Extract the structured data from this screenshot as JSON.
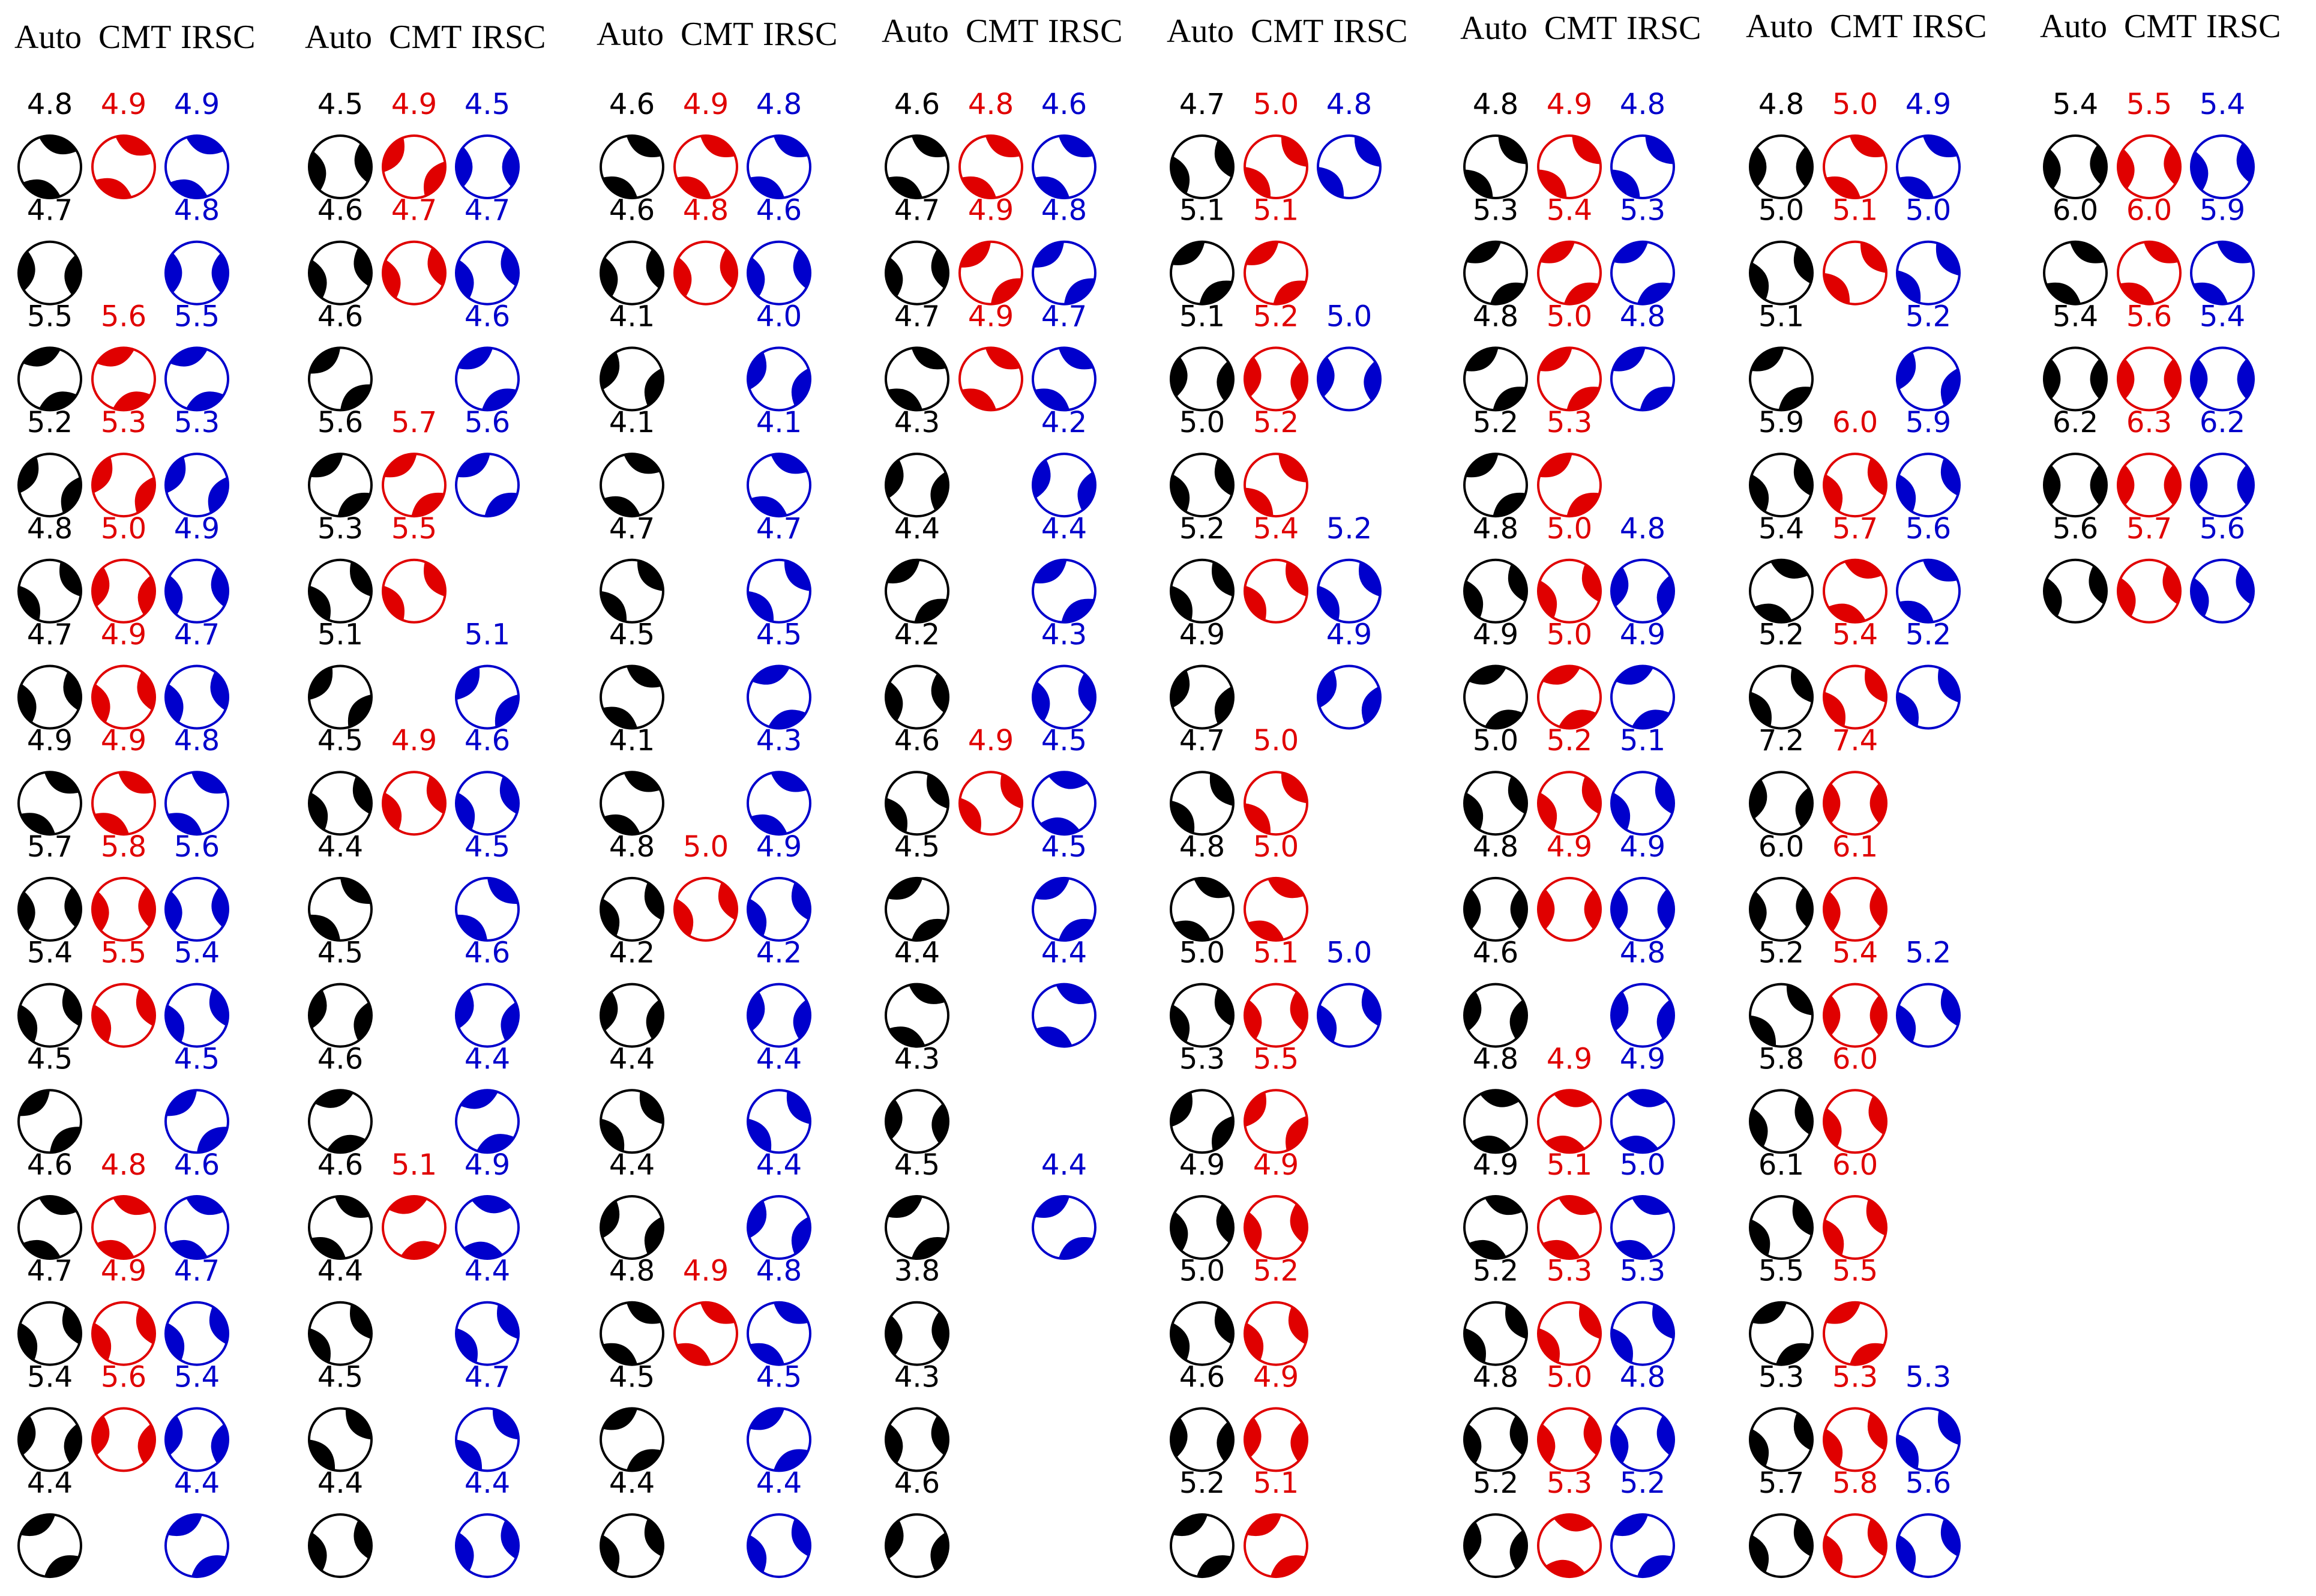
{
  "figure": {
    "header_labels": [
      "Auto",
      "CMT",
      "IRSC"
    ],
    "colors": {
      "auto": "#000000",
      "cmt": "#e00000",
      "irsc": "#0000cc"
    },
    "groups": [
      {
        "rows": [
          {
            "auto": "4.8",
            "cmt": "4.9",
            "irsc": "4.9",
            "ca": 20,
            "cc": 15,
            "ci": 20
          },
          {
            "auto": "4.7",
            "cmt": null,
            "irsc": "4.8",
            "ca": 125,
            "cc": 0,
            "ci": 130
          },
          {
            "auto": "5.5",
            "cmt": "5.6",
            "irsc": "5.5",
            "ca": 60,
            "cc": 60,
            "ci": 60
          },
          {
            "auto": "5.2",
            "cmt": "5.3",
            "irsc": "5.3",
            "ca": 105,
            "cc": 105,
            "ci": 105
          },
          {
            "auto": "4.8",
            "cmt": "5.0",
            "irsc": "4.9",
            "ca": 160,
            "cc": 120,
            "ci": 140
          },
          {
            "auto": "4.7",
            "cmt": "4.9",
            "irsc": "4.7",
            "ca": 145,
            "cc": 145,
            "ci": 145
          },
          {
            "auto": "4.9",
            "cmt": "4.9",
            "irsc": "4.8",
            "ca": 10,
            "cc": 10,
            "ci": 10
          },
          {
            "auto": "5.7",
            "cmt": "5.8",
            "irsc": "5.6",
            "ca": 135,
            "cc": 135,
            "ci": 135
          },
          {
            "auto": "5.4",
            "cmt": "5.5",
            "irsc": "5.4",
            "ca": 150,
            "cc": 150,
            "ci": 150
          },
          {
            "auto": "4.5",
            "cmt": null,
            "irsc": "4.5",
            "ca": 80,
            "cc": 0,
            "ci": 80
          },
          {
            "auto": "4.6",
            "cmt": "4.8",
            "irsc": "4.6",
            "ca": 20,
            "cc": 20,
            "ci": 20
          },
          {
            "auto": "4.7",
            "cmt": "4.9",
            "irsc": "4.7",
            "ca": 150,
            "cc": 150,
            "ci": 150
          },
          {
            "auto": "5.4",
            "cmt": "5.6",
            "irsc": "5.4",
            "ca": 120,
            "cc": 120,
            "ci": 120
          },
          {
            "auto": "4.4",
            "cmt": null,
            "irsc": "4.4",
            "ca": 70,
            "cc": 0,
            "ci": 70
          }
        ]
      },
      {
        "rows": [
          {
            "auto": "4.5",
            "cmt": "4.9",
            "irsc": "4.5",
            "ca": 140,
            "cc": 100,
            "ci": 130
          },
          {
            "auto": "4.6",
            "cmt": "4.7",
            "irsc": "4.7",
            "ca": 145,
            "cc": 145,
            "ci": 145
          },
          {
            "auto": "4.6",
            "cmt": null,
            "irsc": "4.6",
            "ca": 80,
            "cc": 0,
            "ci": 70
          },
          {
            "auto": "5.6",
            "cmt": "5.7",
            "irsc": "5.6",
            "ca": 75,
            "cc": 75,
            "ci": 75
          },
          {
            "auto": "5.3",
            "cmt": "5.5",
            "irsc": null,
            "ca": 160,
            "cc": 160,
            "ci": 0
          },
          {
            "auto": "5.1",
            "cmt": null,
            "irsc": "5.1",
            "ca": 95,
            "cc": 0,
            "ci": 95
          },
          {
            "auto": "4.5",
            "cmt": "4.9",
            "irsc": "4.6",
            "ca": 150,
            "cc": 150,
            "ci": 150
          },
          {
            "auto": "4.4",
            "cmt": null,
            "irsc": "4.5",
            "ca": 0,
            "cc": 0,
            "ci": 0
          },
          {
            "auto": "4.5",
            "cmt": null,
            "irsc": "4.6",
            "ca": 115,
            "cc": 0,
            "ci": 115
          },
          {
            "auto": "4.6",
            "cmt": null,
            "irsc": "4.4",
            "ca": 55,
            "cc": 0,
            "ci": 60
          },
          {
            "auto": "4.6",
            "cmt": "5.1",
            "irsc": "4.9",
            "ca": 10,
            "cc": 55,
            "ci": 30
          },
          {
            "auto": "4.4",
            "cmt": null,
            "irsc": "4.4",
            "ca": 160,
            "cc": 0,
            "ci": 160
          },
          {
            "auto": "4.5",
            "cmt": null,
            "irsc": "4.7",
            "ca": 170,
            "cc": 0,
            "ci": 170
          },
          {
            "auto": "4.4",
            "cmt": null,
            "irsc": "4.4",
            "ca": 145,
            "cc": 0,
            "ci": 145
          }
        ]
      },
      {
        "rows": [
          {
            "auto": "4.6",
            "cmt": "4.9",
            "irsc": "4.8",
            "ca": 10,
            "cc": 10,
            "ci": 10
          },
          {
            "auto": "4.6",
            "cmt": "4.8",
            "irsc": "4.6",
            "ca": 140,
            "cc": 140,
            "ci": 140
          },
          {
            "auto": "4.1",
            "cmt": null,
            "irsc": "4.0",
            "ca": 110,
            "cc": 0,
            "ci": 110
          },
          {
            "auto": "4.1",
            "cmt": null,
            "irsc": "4.1",
            "ca": 15,
            "cc": 0,
            "ci": 15
          },
          {
            "auto": "4.7",
            "cmt": null,
            "irsc": "4.7",
            "ca": 170,
            "cc": 0,
            "ci": 170
          },
          {
            "auto": "4.5",
            "cmt": null,
            "irsc": "4.5",
            "ca": 10,
            "cc": 0,
            "ci": 60
          },
          {
            "auto": "4.1",
            "cmt": null,
            "irsc": "4.3",
            "ca": 15,
            "cc": 0,
            "ci": 15
          },
          {
            "auto": "4.8",
            "cmt": "5.0",
            "irsc": "4.9",
            "ca": 150,
            "cc": 150,
            "ci": 150
          },
          {
            "auto": "4.2",
            "cmt": null,
            "irsc": "4.2",
            "ca": 120,
            "cc": 0,
            "ci": 120
          },
          {
            "auto": "4.4",
            "cmt": null,
            "irsc": "4.4",
            "ca": 165,
            "cc": 0,
            "ci": 165
          },
          {
            "auto": "4.4",
            "cmt": null,
            "irsc": "4.4",
            "ca": 110,
            "cc": 0,
            "ci": 110
          },
          {
            "auto": "4.8",
            "cmt": "4.9",
            "irsc": "4.8",
            "ca": 10,
            "cc": 10,
            "ci": 10
          },
          {
            "auto": "4.5",
            "cmt": null,
            "irsc": "4.5",
            "ca": 70,
            "cc": 0,
            "ci": 70
          },
          {
            "auto": "4.4",
            "cmt": null,
            "irsc": "4.4",
            "ca": 150,
            "cc": 0,
            "ci": 150
          }
        ]
      },
      {
        "rows": [
          {
            "auto": "4.6",
            "cmt": "4.8",
            "irsc": "4.6",
            "ca": 10,
            "cc": 10,
            "ci": 10
          },
          {
            "auto": "4.7",
            "cmt": "4.9",
            "irsc": "4.8",
            "ca": 140,
            "cc": 80,
            "ci": 80
          },
          {
            "auto": "4.7",
            "cmt": "4.9",
            "irsc": "4.7",
            "ca": 10,
            "cc": 10,
            "ci": 10
          },
          {
            "auto": "4.3",
            "cmt": null,
            "irsc": "4.2",
            "ca": 115,
            "cc": 0,
            "ci": 115
          },
          {
            "auto": "4.4",
            "cmt": null,
            "irsc": "4.4",
            "ca": 75,
            "cc": 0,
            "ci": 75
          },
          {
            "auto": "4.2",
            "cmt": null,
            "irsc": "4.3",
            "ca": 140,
            "cc": 0,
            "ci": 140
          },
          {
            "auto": "4.6",
            "cmt": "4.9",
            "irsc": "4.5",
            "ca": 160,
            "cc": 160,
            "ci": 30
          },
          {
            "auto": "4.5",
            "cmt": null,
            "irsc": "4.5",
            "ca": 70,
            "cc": 0,
            "ci": 70
          },
          {
            "auto": "4.4",
            "cmt": null,
            "irsc": "4.4",
            "ca": 15,
            "cc": 0,
            "ci": 15
          },
          {
            "auto": "4.3",
            "cmt": null,
            "irsc": null,
            "ca": 125,
            "cc": 0,
            "ci": 0
          },
          {
            "auto": "4.5",
            "cmt": null,
            "irsc": "4.4",
            "ca": 70,
            "cc": 0,
            "ci": 70
          },
          {
            "auto": "3.8",
            "cmt": null,
            "irsc": null,
            "ca": 135,
            "cc": 0,
            "ci": 0
          },
          {
            "auto": "4.3",
            "cmt": null,
            "irsc": null,
            "ca": 140,
            "cc": 0,
            "ci": 0
          },
          {
            "auto": "4.6",
            "cmt": null,
            "irsc": null,
            "ca": 115,
            "cc": 0,
            "ci": 0
          }
        ]
      },
      {
        "rows": [
          {
            "auto": "4.7",
            "cmt": "5.0",
            "irsc": "4.8",
            "ca": 150,
            "cc": 170,
            "ci": 170
          },
          {
            "auto": "5.1",
            "cmt": "5.1",
            "irsc": null,
            "ca": 75,
            "cc": 75,
            "ci": 0
          },
          {
            "auto": "5.1",
            "cmt": "5.2",
            "irsc": "5.0",
            "ca": 125,
            "cc": 125,
            "ci": 125
          },
          {
            "auto": "5.0",
            "cmt": "5.2",
            "irsc": null,
            "ca": 150,
            "cc": 175,
            "ci": 0
          },
          {
            "auto": "5.2",
            "cmt": "5.4",
            "irsc": "5.2",
            "ca": 160,
            "cc": 160,
            "ci": 160
          },
          {
            "auto": "4.9",
            "cmt": null,
            "irsc": "4.9",
            "ca": 110,
            "cc": 0,
            "ci": 110
          },
          {
            "auto": "4.7",
            "cmt": "5.0",
            "irsc": null,
            "ca": 165,
            "cc": 170,
            "ci": 0
          },
          {
            "auto": "4.8",
            "cmt": "5.0",
            "irsc": null,
            "ca": 15,
            "cc": 15,
            "ci": 0
          },
          {
            "auto": "5.0",
            "cmt": "5.1",
            "irsc": "5.0",
            "ca": 150,
            "cc": 140,
            "ci": 150
          },
          {
            "auto": "5.3",
            "cmt": "5.5",
            "irsc": null,
            "ca": 100,
            "cc": 100,
            "ci": 0
          },
          {
            "auto": "4.9",
            "cmt": "4.9",
            "irsc": null,
            "ca": 140,
            "cc": 140,
            "ci": 0
          },
          {
            "auto": "5.0",
            "cmt": "5.2",
            "irsc": null,
            "ca": 150,
            "cc": 150,
            "ci": 0
          },
          {
            "auto": "4.6",
            "cmt": "4.9",
            "irsc": null,
            "ca": 125,
            "cc": 125,
            "ci": 0
          },
          {
            "auto": "5.2",
            "cmt": "5.1",
            "irsc": null,
            "ca": 70,
            "cc": 70,
            "ci": 0
          }
        ]
      },
      {
        "rows": [
          {
            "auto": "4.8",
            "cmt": "4.9",
            "irsc": "4.8",
            "ca": 175,
            "cc": 175,
            "ci": 175
          },
          {
            "auto": "5.3",
            "cmt": "5.4",
            "irsc": "5.3",
            "ca": 70,
            "cc": 70,
            "ci": 70
          },
          {
            "auto": "4.8",
            "cmt": "5.0",
            "irsc": "4.8",
            "ca": 75,
            "cc": 75,
            "ci": 75
          },
          {
            "auto": "5.2",
            "cmt": "5.3",
            "irsc": null,
            "ca": 75,
            "cc": 75,
            "ci": 0
          },
          {
            "auto": "4.8",
            "cmt": "5.0",
            "irsc": "4.8",
            "ca": 150,
            "cc": 150,
            "ci": 120
          },
          {
            "auto": "4.9",
            "cmt": "5.0",
            "irsc": "4.9",
            "ca": 60,
            "cc": 60,
            "ci": 60
          },
          {
            "auto": "5.0",
            "cmt": "5.2",
            "irsc": "5.1",
            "ca": 150,
            "cc": 150,
            "ci": 150
          },
          {
            "auto": "4.8",
            "cmt": "4.9",
            "irsc": "4.9",
            "ca": 130,
            "cc": 130,
            "ci": 130
          },
          {
            "auto": "4.6",
            "cmt": null,
            "irsc": "4.8",
            "ca": 120,
            "cc": 0,
            "ci": 120
          },
          {
            "auto": "4.8",
            "cmt": "4.9",
            "irsc": "4.9",
            "ca": 30,
            "cc": 30,
            "ci": 30
          },
          {
            "auto": "4.9",
            "cmt": "5.1",
            "irsc": "5.0",
            "ca": 20,
            "cc": 20,
            "ci": 20
          },
          {
            "auto": "5.2",
            "cmt": "5.3",
            "irsc": "5.3",
            "ca": 160,
            "cc": 160,
            "ci": 160
          },
          {
            "auto": "4.8",
            "cmt": "5.0",
            "irsc": "4.8",
            "ca": 140,
            "cc": 140,
            "ci": 140
          },
          {
            "auto": "5.2",
            "cmt": "5.3",
            "irsc": "5.2",
            "ca": 120,
            "cc": 30,
            "ci": 70
          }
        ]
      },
      {
        "rows": [
          {
            "auto": "4.8",
            "cmt": "5.0",
            "irsc": "4.9",
            "ca": 130,
            "cc": 10,
            "ci": 10
          },
          {
            "auto": "5.0",
            "cmt": "5.1",
            "irsc": "5.0",
            "ca": 150,
            "cc": 170,
            "ci": 165
          },
          {
            "auto": "5.1",
            "cmt": null,
            "irsc": "5.2",
            "ca": 75,
            "cc": 0,
            "ci": 110
          },
          {
            "auto": "5.9",
            "cmt": "6.0",
            "irsc": "5.9",
            "ca": 150,
            "cc": 150,
            "ci": 150
          },
          {
            "auto": "5.4",
            "cmt": "5.7",
            "irsc": "5.6",
            "ca": 20,
            "cc": 20,
            "ci": 10
          },
          {
            "auto": "5.2",
            "cmt": "5.4",
            "irsc": "5.2",
            "ca": 160,
            "cc": 160,
            "ci": 160
          },
          {
            "auto": "7.2",
            "cmt": "7.4",
            "irsc": null,
            "ca": 120,
            "cc": 130,
            "ci": 0
          },
          {
            "auto": "6.0",
            "cmt": "6.1",
            "irsc": null,
            "ca": 135,
            "cc": 135,
            "ci": 0
          },
          {
            "auto": "5.2",
            "cmt": "5.4",
            "irsc": "5.2",
            "ca": 170,
            "cc": 130,
            "ci": 150
          },
          {
            "auto": "5.8",
            "cmt": "6.0",
            "irsc": null,
            "ca": 145,
            "cc": 145,
            "ci": 0
          },
          {
            "auto": "6.1",
            "cmt": "6.0",
            "irsc": null,
            "ca": 155,
            "cc": 155,
            "ci": 0
          },
          {
            "auto": "5.5",
            "cmt": "5.5",
            "irsc": null,
            "ca": 70,
            "cc": 70,
            "ci": 0
          },
          {
            "auto": "5.3",
            "cmt": "5.3",
            "irsc": "5.3",
            "ca": 150,
            "cc": 150,
            "ci": 160
          },
          {
            "auto": "5.7",
            "cmt": "5.8",
            "irsc": "5.6",
            "ca": 150,
            "cc": 150,
            "ci": 150
          }
        ]
      },
      {
        "rows": [
          {
            "auto": "5.4",
            "cmt": "5.5",
            "irsc": "5.4",
            "ca": 135,
            "cc": 135,
            "ci": 140
          },
          {
            "auto": "6.0",
            "cmt": "6.0",
            "irsc": "5.9",
            "ca": 10,
            "cc": 10,
            "ci": 10
          },
          {
            "auto": "5.4",
            "cmt": "5.6",
            "irsc": "5.4",
            "ca": 130,
            "cc": 130,
            "ci": 130
          },
          {
            "auto": "6.2",
            "cmt": "6.3",
            "irsc": "6.2",
            "ca": 130,
            "cc": 130,
            "ci": 130
          },
          {
            "auto": "5.6",
            "cmt": "5.7",
            "irsc": "5.6",
            "ca": 145,
            "cc": 145,
            "ci": 145
          }
        ]
      }
    ]
  }
}
